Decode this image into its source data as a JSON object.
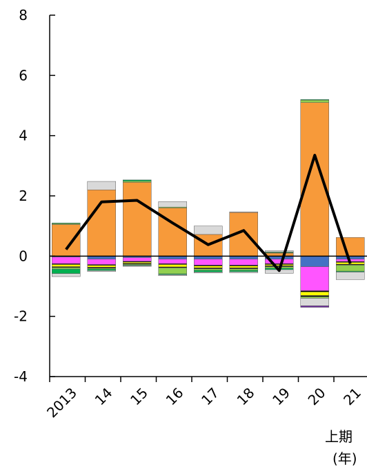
{
  "chart_data": {
    "type": "bar",
    "subtype": "stacked-bar-with-line",
    "categories": [
      "2013",
      "14",
      "15",
      "16",
      "17",
      "18",
      "19",
      "20",
      "21"
    ],
    "ylim": [
      -4,
      8
    ],
    "yticks": [
      -4,
      -2,
      0,
      2,
      4,
      6,
      8
    ],
    "x_annotations": [
      "上期",
      "(年)"
    ],
    "grid": false,
    "legend": "none",
    "series": [
      {
        "color": "#4472C4",
        "values": [
          -0.03,
          -0.1,
          -0.05,
          -0.1,
          -0.1,
          -0.1,
          -0.1,
          -0.35,
          -0.1
        ]
      },
      {
        "color": "#FF55FF",
        "values": [
          -0.22,
          -0.18,
          -0.12,
          -0.15,
          -0.2,
          -0.2,
          -0.15,
          -0.8,
          -0.08
        ]
      },
      {
        "color": "#000000",
        "values": [
          -0.03,
          -0.03,
          -0.03,
          -0.03,
          -0.03,
          -0.03,
          -0.03,
          -0.04,
          -0.03
        ]
      },
      {
        "color": "#FFFF00",
        "values": [
          -0.07,
          -0.06,
          -0.04,
          -0.08,
          -0.06,
          -0.06,
          -0.04,
          -0.12,
          -0.06
        ]
      },
      {
        "color": "#000000",
        "values": [
          -0.03,
          -0.03,
          -0.03,
          -0.03,
          -0.03,
          -0.03,
          -0.03,
          -0.04,
          -0.03
        ]
      },
      {
        "color": "#92D050",
        "values": [
          -0.05,
          -0.03,
          -0.03,
          -0.2,
          -0.05,
          -0.05,
          -0.05,
          -0.05,
          -0.2
        ]
      },
      {
        "color": "#00B050",
        "values": [
          -0.15,
          -0.05,
          -0.02,
          -0.03,
          -0.06,
          -0.05,
          -0.05,
          0.0,
          -0.03
        ]
      },
      {
        "color": "#D9D9D9",
        "values": [
          -0.1,
          -0.03,
          -0.02,
          -0.03,
          -0.03,
          -0.03,
          -0.12,
          -0.25,
          -0.25
        ]
      },
      {
        "color": "#7030A0",
        "values": [
          0.0,
          0.0,
          0.0,
          0.0,
          0.0,
          0.0,
          0.0,
          -0.05,
          0.0
        ]
      },
      {
        "color": "#F79A3A",
        "values": [
          1.05,
          2.2,
          2.45,
          1.6,
          0.72,
          1.45,
          0.1,
          5.1,
          0.62
        ]
      },
      {
        "color": "#92D050",
        "values": [
          0.03,
          0.0,
          0.04,
          0.03,
          0.0,
          0.0,
          0.02,
          0.08,
          0.0
        ]
      },
      {
        "color": "#00B050",
        "values": [
          0.02,
          0.0,
          0.04,
          0.0,
          0.0,
          0.0,
          0.02,
          0.02,
          0.0
        ]
      },
      {
        "color": "#D9D9D9",
        "values": [
          0.0,
          0.28,
          0.0,
          0.18,
          0.28,
          0.02,
          0.04,
          0.0,
          0.0
        ]
      }
    ],
    "line": {
      "color": "#000000",
      "values": [
        0.22,
        1.8,
        1.85,
        1.1,
        0.38,
        0.85,
        -0.48,
        3.35,
        -0.25
      ]
    }
  }
}
